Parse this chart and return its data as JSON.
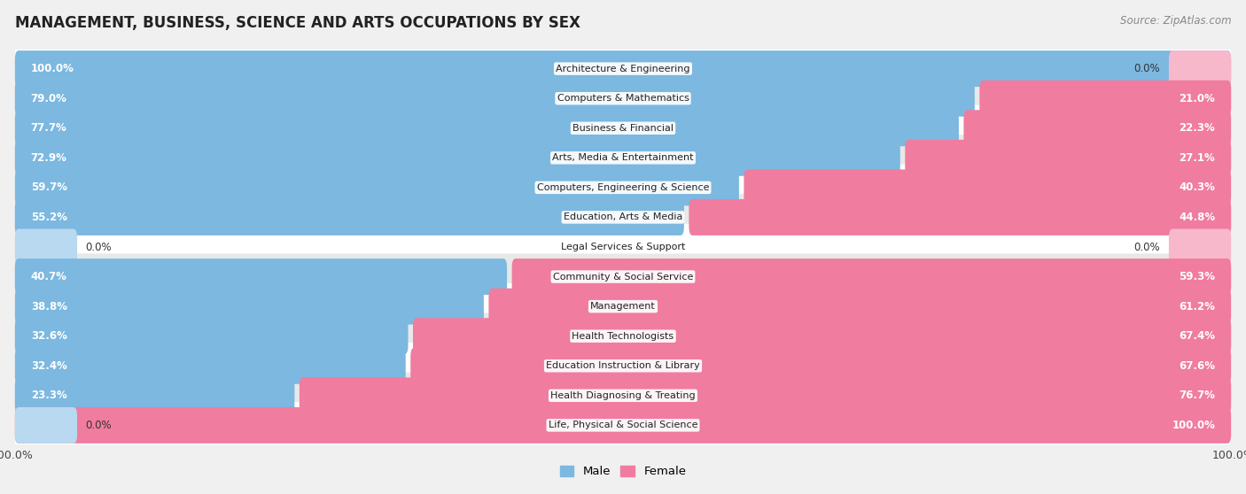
{
  "title": "MANAGEMENT, BUSINESS, SCIENCE AND ARTS OCCUPATIONS BY SEX",
  "source": "Source: ZipAtlas.com",
  "categories": [
    "Architecture & Engineering",
    "Computers & Mathematics",
    "Business & Financial",
    "Arts, Media & Entertainment",
    "Computers, Engineering & Science",
    "Education, Arts & Media",
    "Legal Services & Support",
    "Community & Social Service",
    "Management",
    "Health Technologists",
    "Education Instruction & Library",
    "Health Diagnosing & Treating",
    "Life, Physical & Social Science"
  ],
  "male": [
    100.0,
    79.0,
    77.7,
    72.9,
    59.7,
    55.2,
    0.0,
    40.7,
    38.8,
    32.6,
    32.4,
    23.3,
    0.0
  ],
  "female": [
    0.0,
    21.0,
    22.3,
    27.1,
    40.3,
    44.8,
    0.0,
    59.3,
    61.2,
    67.4,
    67.6,
    76.7,
    100.0
  ],
  "male_color": "#7cb8e0",
  "female_color": "#f07ca0",
  "male_color_light": "#b8d9f0",
  "female_color_light": "#f8b8cc",
  "male_label": "Male",
  "female_label": "Female",
  "bg_color": "#f0f0f0",
  "row_bg_even": "#ffffff",
  "row_bg_odd": "#e8e8e8",
  "title_fontsize": 12,
  "bar_height": 0.62,
  "total_width": 100.0,
  "label_text_color_dark": "#333333",
  "label_text_color_white": "#ffffff"
}
